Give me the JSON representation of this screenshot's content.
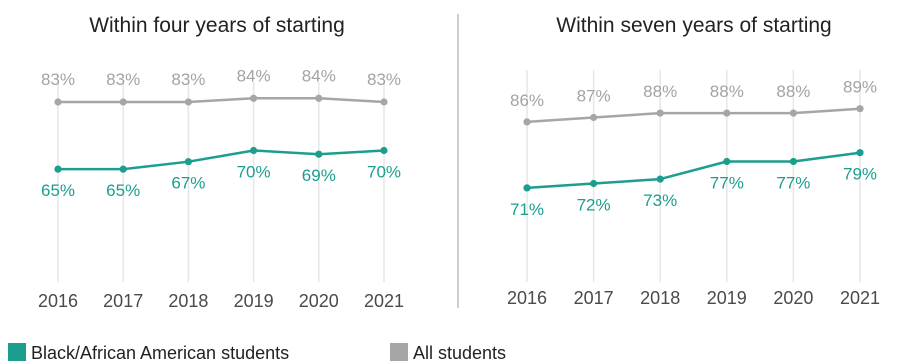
{
  "chart_data": [
    {
      "type": "line",
      "title": "Within four years of starting",
      "categories": [
        "2016",
        "2017",
        "2018",
        "2019",
        "2020",
        "2021"
      ],
      "series": [
        {
          "name": "All students",
          "color": "#a6a6a6",
          "values": [
            83,
            83,
            83,
            84,
            84,
            83
          ],
          "labels": [
            "83%",
            "83%",
            "83%",
            "84%",
            "84%",
            "83%"
          ]
        },
        {
          "name": "Black/African American students",
          "color": "#1b9e8e",
          "values": [
            65,
            65,
            67,
            70,
            69,
            70
          ],
          "labels": [
            "65%",
            "65%",
            "67%",
            "70%",
            "69%",
            "70%"
          ]
        }
      ],
      "ylim": [
        30,
        100
      ],
      "grid": "vertical"
    },
    {
      "type": "line",
      "title": "Within seven years of starting",
      "categories": [
        "2016",
        "2017",
        "2018",
        "2019",
        "2020",
        "2021"
      ],
      "series": [
        {
          "name": "All students",
          "color": "#a6a6a6",
          "values": [
            86,
            87,
            88,
            88,
            88,
            89
          ],
          "labels": [
            "86%",
            "87%",
            "88%",
            "88%",
            "88%",
            "89%"
          ]
        },
        {
          "name": "Black/African American students",
          "color": "#1b9e8e",
          "values": [
            71,
            72,
            73,
            77,
            77,
            79
          ],
          "labels": [
            "71%",
            "72%",
            "73%",
            "77%",
            "77%",
            "79%"
          ]
        }
      ],
      "ylim": [
        30,
        100
      ],
      "grid": "vertical"
    }
  ],
  "legend": {
    "placement": "bottom-left",
    "items": [
      {
        "label": "Black/African American students",
        "color": "#1b9e8e"
      },
      {
        "label": "All students",
        "color": "#a6a6a6"
      }
    ]
  }
}
